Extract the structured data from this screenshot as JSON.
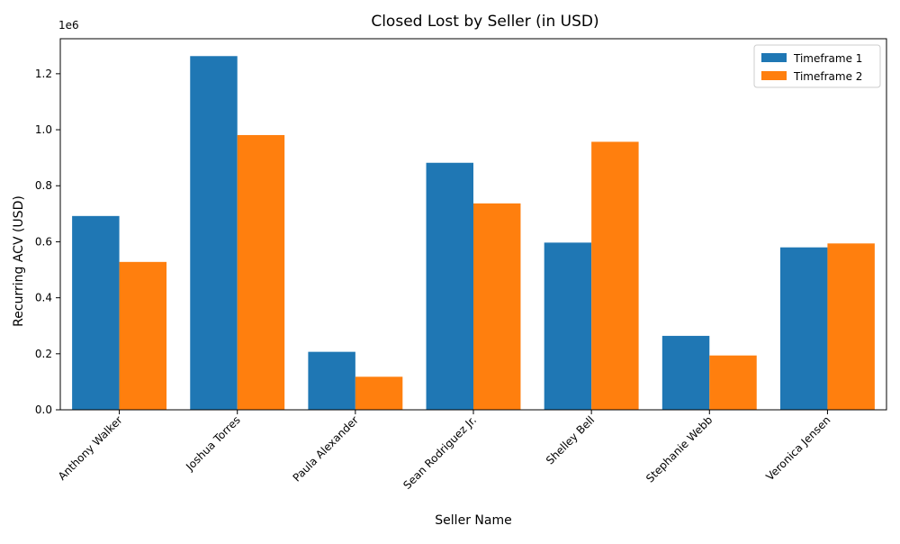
{
  "chart_data": {
    "type": "bar",
    "title": "Closed Lost by Seller (in USD)",
    "xlabel": "Seller Name",
    "ylabel": "Recurring ACV (USD)",
    "y_offset_label": "1e6",
    "ylim": [
      0,
      1325000
    ],
    "yticks": [
      0,
      200000,
      400000,
      600000,
      800000,
      1000000,
      1200000
    ],
    "ytick_labels": [
      "0.0",
      "0.2",
      "0.4",
      "0.6",
      "0.8",
      "1.0",
      "1.2"
    ],
    "categories": [
      "Anthony Walker",
      "Joshua Torres",
      "Paula Alexander",
      "Sean Rodriguez Jr.",
      "Shelley Bell",
      "Stephanie Webb",
      "Veronica Jensen"
    ],
    "series": [
      {
        "name": "Timeframe 1",
        "color": "#1f77b4",
        "values": [
          692000,
          1263000,
          207000,
          882000,
          597000,
          264000,
          580000
        ]
      },
      {
        "name": "Timeframe 2",
        "color": "#ff7f0e",
        "values": [
          528000,
          981000,
          118000,
          737000,
          957000,
          194000,
          594000
        ]
      }
    ],
    "legend_position": "top-right",
    "grid": false
  }
}
